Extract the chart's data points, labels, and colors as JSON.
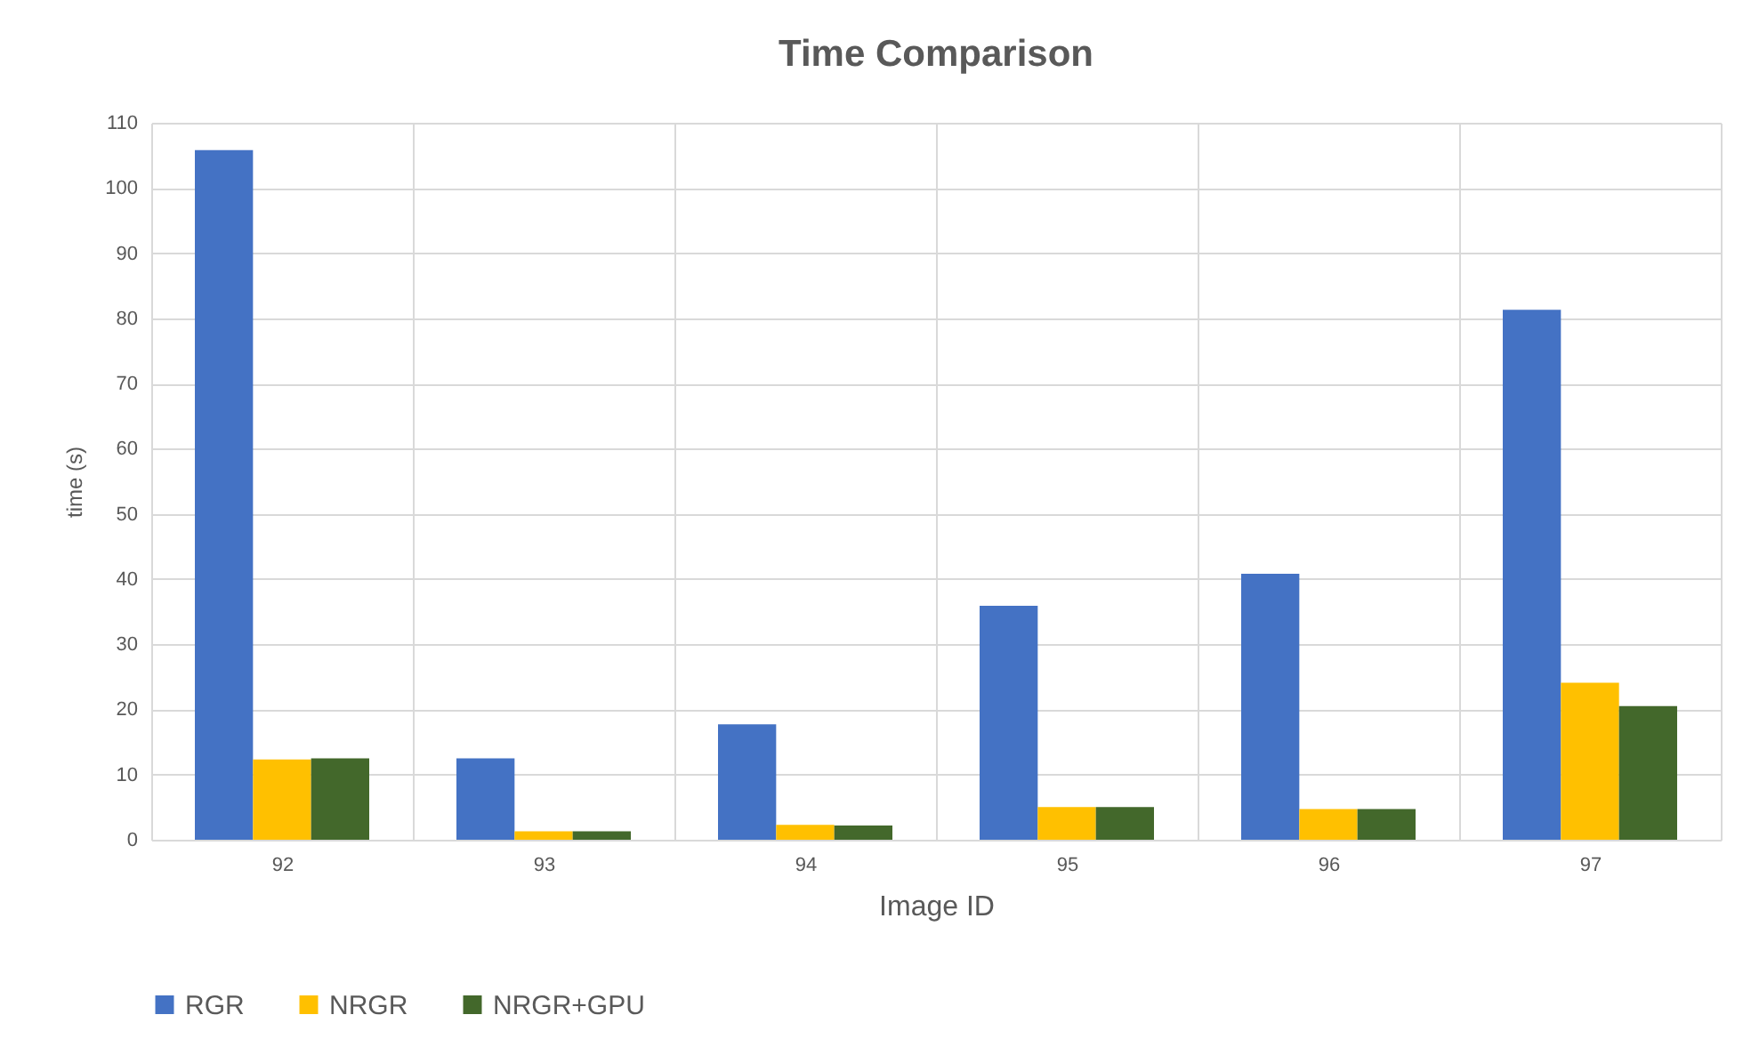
{
  "chart_data": {
    "type": "bar",
    "title": "Time Comparison",
    "xlabel": "Image ID",
    "ylabel": "time (s)",
    "categories": [
      "92",
      "93",
      "94",
      "95",
      "96",
      "97"
    ],
    "series": [
      {
        "name": "RGR",
        "color": "#4472c4",
        "values": [
          105.8,
          12.5,
          17.7,
          35.9,
          40.8,
          81.3
        ]
      },
      {
        "name": "NRGR",
        "color": "#ffc000",
        "values": [
          12.3,
          1.3,
          2.3,
          5.0,
          4.7,
          24.1
        ]
      },
      {
        "name": "NRGR+GPU",
        "color": "#43682b",
        "values": [
          12.5,
          1.3,
          2.2,
          5.0,
          4.7,
          20.5
        ]
      }
    ],
    "ylim": [
      0,
      110
    ],
    "yticks": [
      0,
      10,
      20,
      30,
      40,
      50,
      60,
      70,
      80,
      90,
      100,
      110
    ],
    "grid": true,
    "legend": "bottom"
  }
}
